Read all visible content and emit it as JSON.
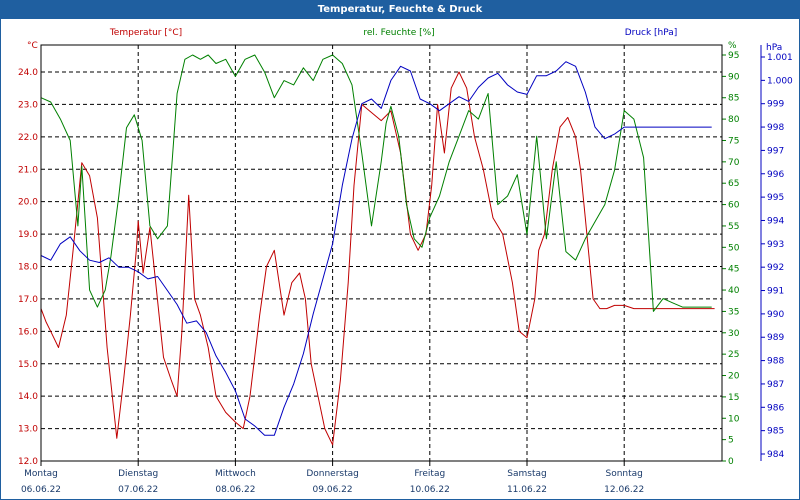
{
  "chart_data": {
    "type": "line",
    "title": "Temperatur, Feuchte & Druck",
    "axes": {
      "temperature": {
        "label": "Temperatur [°C]",
        "unit": "°C",
        "min": 12.0,
        "max": 24.0,
        "ticks": [
          "12.0",
          "13.0",
          "14.0",
          "15.0",
          "16.0",
          "17.0",
          "18.0",
          "19.0",
          "20.0",
          "21.0",
          "22.0",
          "23.0",
          "24.0"
        ],
        "color": "#c00000"
      },
      "humidity": {
        "label": "rel. Feuchte [%]",
        "unit": "%",
        "min": 0,
        "max": 95,
        "ticks": [
          "0",
          "5",
          "10",
          "15",
          "20",
          "25",
          "30",
          "35",
          "40",
          "45",
          "50",
          "55",
          "60",
          "65",
          "70",
          "75",
          "80",
          "85",
          "90",
          "95"
        ],
        "color": "#008000"
      },
      "pressure": {
        "label": "Druck [hPa]",
        "unit": "hPa",
        "min": 984,
        "max": 1001,
        "ticks": [
          "984",
          "985",
          "986",
          "987",
          "988",
          "989",
          "990",
          "991",
          "992",
          "993",
          "994",
          "995",
          "996",
          "997",
          "998",
          "999",
          "1.000",
          "1.001"
        ],
        "color": "#0000c0"
      }
    },
    "x_range": [
      0,
      7
    ],
    "x_labels": [
      {
        "day": "Montag",
        "date": "06.06.22"
      },
      {
        "day": "Dienstag",
        "date": "07.06.22"
      },
      {
        "day": "Mittwoch",
        "date": "08.06.22"
      },
      {
        "day": "Donnerstag",
        "date": "09.06.22"
      },
      {
        "day": "Freitag",
        "date": "10.06.22"
      },
      {
        "day": "Samstag",
        "date": "11.06.22"
      },
      {
        "day": "Sonntag",
        "date": "12.06.22"
      }
    ],
    "series": [
      {
        "name": "Temperatur",
        "axis": "temperature",
        "color": "#c00000",
        "x": [
          0,
          0.05,
          0.1,
          0.18,
          0.26,
          0.33,
          0.42,
          0.5,
          0.58,
          0.68,
          0.78,
          0.85,
          0.92,
          0.98,
          1.0,
          1.05,
          1.12,
          1.18,
          1.26,
          1.34,
          1.4,
          1.45,
          1.52,
          1.58,
          1.64,
          1.72,
          1.8,
          1.9,
          2.0,
          2.08,
          2.15,
          2.25,
          2.32,
          2.4,
          2.5,
          2.58,
          2.66,
          2.72,
          2.78,
          2.85,
          2.92,
          3.0,
          3.08,
          3.16,
          3.22,
          3.3,
          3.38,
          3.5,
          3.6,
          3.7,
          3.8,
          3.88,
          3.96,
          4.02,
          4.08,
          4.15,
          4.22,
          4.3,
          4.38,
          4.46,
          4.55,
          4.65,
          4.75,
          4.85,
          4.92,
          5.0,
          5.08,
          5.12,
          5.18,
          5.26,
          5.34,
          5.42,
          5.5,
          5.55,
          5.6,
          5.68,
          5.75,
          5.82,
          5.9,
          6.0,
          6.1,
          6.18,
          6.25,
          6.33,
          6.42,
          6.5,
          6.6,
          6.7,
          6.78,
          6.85,
          6.9,
          6.93
        ],
        "values": [
          16.7,
          16.3,
          16.0,
          15.5,
          16.5,
          18.5,
          21.2,
          20.8,
          19.5,
          15.5,
          12.7,
          14.5,
          16.5,
          18.5,
          19.4,
          17.8,
          19.2,
          17.5,
          15.2,
          14.5,
          14.0,
          16.0,
          20.2,
          17.0,
          16.5,
          15.5,
          14.0,
          13.5,
          13.2,
          13.0,
          14.0,
          16.5,
          18.0,
          18.5,
          16.5,
          17.5,
          17.8,
          17.0,
          15.0,
          14.0,
          13.0,
          12.5,
          14.5,
          17.5,
          20.5,
          23.0,
          22.8,
          22.5,
          22.8,
          21.5,
          19.0,
          18.5,
          19.0,
          20.5,
          23.0,
          21.5,
          23.5,
          24.0,
          23.5,
          22.0,
          21.0,
          19.5,
          19.0,
          17.5,
          16.0,
          15.8,
          17.0,
          18.5,
          19.0,
          21.0,
          22.3,
          22.6,
          22.0,
          21.0,
          19.5,
          17.0,
          16.7,
          16.7,
          16.8,
          16.8,
          16.7,
          16.7,
          16.7,
          16.7,
          16.7,
          16.7,
          16.7,
          16.7,
          16.7,
          16.7,
          16.7,
          16.7
        ]
      },
      {
        "name": "rel. Feuchte",
        "axis": "humidity",
        "color": "#008000",
        "x": [
          0,
          0.1,
          0.2,
          0.3,
          0.38,
          0.42,
          0.5,
          0.58,
          0.66,
          0.72,
          0.8,
          0.88,
          0.96,
          1.04,
          1.12,
          1.2,
          1.3,
          1.4,
          1.48,
          1.56,
          1.64,
          1.72,
          1.8,
          1.9,
          2.0,
          2.1,
          2.2,
          2.3,
          2.4,
          2.5,
          2.6,
          2.7,
          2.8,
          2.9,
          3.0,
          3.1,
          3.2,
          3.3,
          3.4,
          3.5,
          3.55,
          3.6,
          3.68,
          3.76,
          3.84,
          3.92,
          4.0,
          4.1,
          4.2,
          4.3,
          4.4,
          4.5,
          4.6,
          4.7,
          4.8,
          4.9,
          5.0,
          5.1,
          5.2,
          5.3,
          5.4,
          5.5,
          5.6,
          5.7,
          5.8,
          5.9,
          6.0,
          6.1,
          6.2,
          6.3,
          6.4,
          6.5,
          6.6,
          6.7,
          6.8,
          6.9
        ],
        "values": [
          85,
          84,
          80,
          75,
          55,
          69,
          40,
          36,
          40,
          48,
          62,
          78,
          81,
          75,
          55,
          52,
          55,
          86,
          94,
          95,
          94,
          95,
          93,
          94,
          90,
          94,
          95,
          91,
          85,
          89,
          88,
          92,
          89,
          94,
          95,
          93,
          88,
          72,
          55,
          70,
          79,
          83,
          76,
          60,
          52,
          50,
          57,
          62,
          70,
          76,
          82,
          80,
          86,
          60,
          62,
          67,
          53,
          76,
          52,
          70,
          49,
          47,
          52,
          56,
          60,
          68,
          82,
          80,
          71,
          35,
          38,
          37,
          36,
          36,
          36,
          36
        ]
      },
      {
        "name": "Druck",
        "axis": "pressure",
        "color": "#0000c0",
        "x": [
          0,
          0.1,
          0.2,
          0.3,
          0.4,
          0.5,
          0.6,
          0.7,
          0.8,
          0.9,
          1.0,
          1.1,
          1.2,
          1.3,
          1.4,
          1.5,
          1.6,
          1.7,
          1.8,
          1.9,
          2.0,
          2.1,
          2.2,
          2.3,
          2.4,
          2.5,
          2.6,
          2.7,
          2.8,
          2.9,
          3.0,
          3.1,
          3.2,
          3.3,
          3.4,
          3.5,
          3.6,
          3.7,
          3.8,
          3.9,
          4.0,
          4.1,
          4.2,
          4.3,
          4.4,
          4.5,
          4.6,
          4.7,
          4.8,
          4.9,
          5.0,
          5.1,
          5.2,
          5.3,
          5.4,
          5.5,
          5.6,
          5.7,
          5.8,
          5.9,
          6.0,
          6.1,
          6.2,
          6.3,
          6.4,
          6.5,
          6.6,
          6.7,
          6.8,
          6.9
        ],
        "values": [
          992.5,
          992.3,
          993.0,
          993.3,
          992.7,
          992.3,
          992.2,
          992.4,
          992.0,
          992.0,
          991.8,
          991.5,
          991.6,
          991.0,
          990.4,
          989.6,
          989.7,
          989.2,
          988.2,
          987.5,
          986.7,
          985.5,
          985.2,
          984.8,
          984.8,
          986.0,
          987.0,
          988.3,
          990.0,
          991.5,
          993.0,
          995.5,
          997.5,
          999.0,
          999.2,
          998.8,
          1000.0,
          1000.6,
          1000.4,
          999.2,
          999.0,
          998.7,
          999.0,
          999.3,
          999.1,
          999.7,
          1000.1,
          1000.3,
          999.8,
          999.5,
          999.4,
          1000.2,
          1000.2,
          1000.4,
          1000.8,
          1000.6,
          999.5,
          998.0,
          997.5,
          997.7,
          998.0,
          998.0,
          998.0,
          998.0,
          998.0,
          998.0,
          998.0,
          998.0,
          998.0,
          998.0
        ]
      }
    ]
  }
}
